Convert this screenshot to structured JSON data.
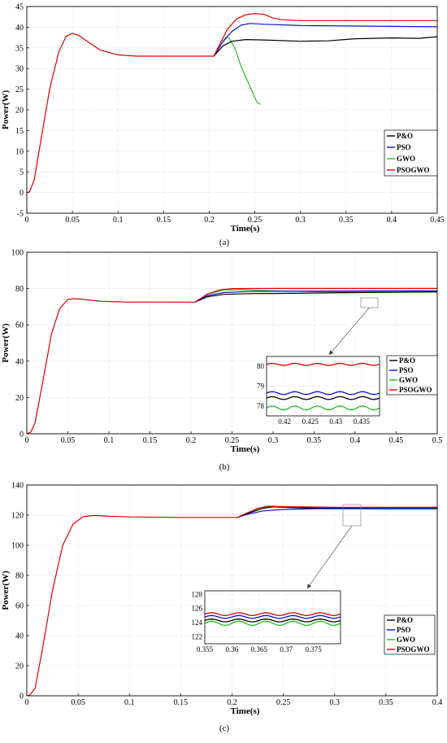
{
  "chart_data": [
    {
      "type": "line",
      "caption": "(a)",
      "xlabel": "Time(s)",
      "ylabel": "Power(W)",
      "xlim": [
        0,
        0.45
      ],
      "ylim": [
        -5,
        45
      ],
      "xticks": [
        "0",
        "0.05",
        "0.1",
        "0.15",
        "0.2",
        "0.25",
        "0.3",
        "0.35",
        "0.4",
        "0.45"
      ],
      "xtickvals": [
        0,
        0.05,
        0.1,
        0.15,
        0.2,
        0.25,
        0.3,
        0.35,
        0.4,
        0.45
      ],
      "yticks": [
        "-5",
        "0",
        "5",
        "10",
        "15",
        "20",
        "25",
        "30",
        "35",
        "40",
        "45"
      ],
      "ytickvals": [
        -5,
        0,
        5,
        10,
        15,
        20,
        25,
        30,
        35,
        40,
        45
      ],
      "grid": true,
      "legend_position": "right",
      "series": [
        {
          "name": "P&O",
          "color": "#000000",
          "points": [
            [
              0.205,
              33
            ],
            [
              0.215,
              35.5
            ],
            [
              0.225,
              36.6
            ],
            [
              0.24,
              37
            ],
            [
              0.26,
              36.9
            ],
            [
              0.3,
              36.6
            ],
            [
              0.33,
              36.7
            ],
            [
              0.36,
              37.2
            ],
            [
              0.4,
              37.4
            ],
            [
              0.43,
              37.3
            ],
            [
              0.45,
              37.7
            ]
          ]
        },
        {
          "name": "PSO",
          "color": "#1010d0",
          "points": [
            [
              0.205,
              33
            ],
            [
              0.215,
              36.5
            ],
            [
              0.225,
              39
            ],
            [
              0.235,
              40.5
            ],
            [
              0.245,
              40.9
            ],
            [
              0.26,
              40.7
            ],
            [
              0.3,
              40.4
            ],
            [
              0.35,
              40.3
            ],
            [
              0.4,
              40.2
            ],
            [
              0.45,
              40.1
            ]
          ]
        },
        {
          "name": "GWO",
          "color": "#22c022",
          "points": [
            [
              0.205,
              33
            ],
            [
              0.212,
              35.5
            ],
            [
              0.218,
              37.5
            ],
            [
              0.222,
              37.3
            ],
            [
              0.228,
              35
            ],
            [
              0.235,
              30.5
            ],
            [
              0.242,
              27
            ],
            [
              0.248,
              24
            ],
            [
              0.252,
              22
            ],
            [
              0.256,
              21.3
            ]
          ]
        },
        {
          "name": "PSOGWO",
          "color": "#e00000",
          "points": [
            [
              0,
              0
            ],
            [
              0.003,
              0.2
            ],
            [
              0.008,
              3
            ],
            [
              0.015,
              12
            ],
            [
              0.025,
              25
            ],
            [
              0.035,
              34
            ],
            [
              0.043,
              37.8
            ],
            [
              0.05,
              38.5
            ],
            [
              0.057,
              38
            ],
            [
              0.065,
              36.8
            ],
            [
              0.08,
              34.5
            ],
            [
              0.1,
              33.3
            ],
            [
              0.12,
              33
            ],
            [
              0.15,
              33
            ],
            [
              0.2,
              33
            ],
            [
              0.205,
              33
            ],
            [
              0.213,
              36.5
            ],
            [
              0.22,
              39.5
            ],
            [
              0.23,
              42
            ],
            [
              0.24,
              43
            ],
            [
              0.25,
              43.3
            ],
            [
              0.26,
              43.1
            ],
            [
              0.27,
              42.2
            ],
            [
              0.28,
              41.8
            ],
            [
              0.3,
              41.6
            ],
            [
              0.35,
              41.6
            ],
            [
              0.4,
              41.6
            ],
            [
              0.45,
              41.6
            ]
          ]
        }
      ]
    },
    {
      "type": "line",
      "caption": "(b)",
      "xlabel": "Time(s)",
      "ylabel": "Power(W)",
      "xlim": [
        0,
        0.5
      ],
      "ylim": [
        0,
        100
      ],
      "xticks": [
        "0",
        "0.05",
        "0.1",
        "0.15",
        "0.2",
        "0.25",
        "0.3",
        "0.35",
        "0.4",
        "0.45",
        "0.5"
      ],
      "xtickvals": [
        0,
        0.05,
        0.1,
        0.15,
        0.2,
        0.25,
        0.3,
        0.35,
        0.4,
        0.45,
        0.5
      ],
      "yticks": [
        "0",
        "20",
        "40",
        "60",
        "80",
        "100"
      ],
      "ytickvals": [
        0,
        20,
        40,
        60,
        80,
        100
      ],
      "grid": true,
      "legend_position": "right",
      "series": [
        {
          "name": "P&O",
          "color": "#000000",
          "points": [
            [
              0.205,
              72.5
            ],
            [
              0.22,
              75.5
            ],
            [
              0.24,
              76.8
            ],
            [
              0.27,
              77.2
            ],
            [
              0.3,
              77.3
            ],
            [
              0.4,
              77.8
            ],
            [
              0.45,
              78
            ],
            [
              0.5,
              78.2
            ]
          ]
        },
        {
          "name": "PSO",
          "color": "#1010d0",
          "points": [
            [
              0.205,
              72.5
            ],
            [
              0.22,
              76.2
            ],
            [
              0.24,
              77.8
            ],
            [
              0.27,
              78.4
            ],
            [
              0.3,
              78.5
            ],
            [
              0.4,
              78.7
            ],
            [
              0.5,
              78.8
            ]
          ]
        },
        {
          "name": "GWO",
          "color": "#22c022",
          "points": [
            [
              0.205,
              72.5
            ],
            [
              0.22,
              77
            ],
            [
              0.24,
              79.2
            ],
            [
              0.26,
              79.4
            ],
            [
              0.3,
              78.8
            ],
            [
              0.35,
              78.3
            ],
            [
              0.4,
              78.1
            ],
            [
              0.5,
              78.1
            ]
          ]
        },
        {
          "name": "PSOGWO",
          "color": "#e00000",
          "points": [
            [
              0,
              0
            ],
            [
              0.005,
              1
            ],
            [
              0.01,
              6
            ],
            [
              0.02,
              30
            ],
            [
              0.03,
              55
            ],
            [
              0.04,
              69
            ],
            [
              0.05,
              74
            ],
            [
              0.058,
              74.5
            ],
            [
              0.07,
              74
            ],
            [
              0.09,
              73
            ],
            [
              0.12,
              72.6
            ],
            [
              0.2,
              72.5
            ],
            [
              0.205,
              72.5
            ],
            [
              0.22,
              77
            ],
            [
              0.235,
              79.3
            ],
            [
              0.25,
              80
            ],
            [
              0.3,
              80.1
            ],
            [
              0.4,
              80.1
            ],
            [
              0.5,
              80.1
            ]
          ]
        }
      ],
      "inset": {
        "xlim": [
          0.4165,
          0.4385
        ],
        "ylim": [
          77.5,
          80.5
        ],
        "xticks": [
          "0.42",
          "0.425",
          "0.43",
          "0.435"
        ],
        "xtickvals": [
          0.42,
          0.425,
          0.43,
          0.435
        ],
        "yticks": [
          "78",
          "79",
          "80"
        ],
        "ytickvals": [
          78,
          79,
          80
        ],
        "series_levels": [
          {
            "name": "P&O",
            "color": "#000000",
            "level": 78.4,
            "ripple": 0.07
          },
          {
            "name": "PSO",
            "color": "#1010d0",
            "level": 78.65,
            "ripple": 0.07
          },
          {
            "name": "GWO",
            "color": "#22c022",
            "level": 77.9,
            "ripple": 0.1
          },
          {
            "name": "PSOGWO",
            "color": "#e00000",
            "level": 80.1,
            "ripple": 0.05
          }
        ]
      }
    },
    {
      "type": "line",
      "caption": "(c)",
      "xlabel": "Time(s)",
      "ylabel": "Power(W)",
      "xlim": [
        0,
        0.4
      ],
      "ylim": [
        0,
        140
      ],
      "xticks": [
        "0",
        "0.05",
        "0.1",
        "0.15",
        "0.2",
        "0.25",
        "0.3",
        "0.35",
        "0.4"
      ],
      "xtickvals": [
        0,
        0.05,
        0.1,
        0.15,
        0.2,
        0.25,
        0.3,
        0.35,
        0.4
      ],
      "yticks": [
        "0",
        "20",
        "40",
        "60",
        "80",
        "100",
        "120",
        "140"
      ],
      "ytickvals": [
        0,
        20,
        40,
        60,
        80,
        100,
        120,
        140
      ],
      "grid": true,
      "legend_position": "right",
      "series": [
        {
          "name": "P&O",
          "color": "#000000",
          "points": [
            [
              0.205,
              118.5
            ],
            [
              0.215,
              121
            ],
            [
              0.23,
              124.5
            ],
            [
              0.24,
              125.5
            ],
            [
              0.26,
              125
            ],
            [
              0.3,
              124.6
            ],
            [
              0.35,
              124.5
            ],
            [
              0.4,
              124.5
            ]
          ]
        },
        {
          "name": "PSO",
          "color": "#1010d0",
          "points": [
            [
              0.205,
              118.5
            ],
            [
              0.215,
              120.5
            ],
            [
              0.23,
              122.8
            ],
            [
              0.25,
              123.8
            ],
            [
              0.28,
              124.2
            ],
            [
              0.35,
              124.5
            ],
            [
              0.4,
              124.6
            ]
          ]
        },
        {
          "name": "GWO",
          "color": "#22c022",
          "points": [
            [
              0.205,
              118.5
            ],
            [
              0.215,
              121.5
            ],
            [
              0.228,
              125
            ],
            [
              0.24,
              125.6
            ],
            [
              0.27,
              124.6
            ],
            [
              0.3,
              124.2
            ],
            [
              0.35,
              124
            ],
            [
              0.4,
              124
            ]
          ]
        },
        {
          "name": "PSOGWO",
          "color": "#e00000",
          "points": [
            [
              0,
              0
            ],
            [
              0.003,
              0.5
            ],
            [
              0.008,
              5
            ],
            [
              0.015,
              30
            ],
            [
              0.025,
              70
            ],
            [
              0.035,
              100
            ],
            [
              0.045,
              114
            ],
            [
              0.055,
              119
            ],
            [
              0.065,
              119.8
            ],
            [
              0.08,
              119.3
            ],
            [
              0.1,
              118.8
            ],
            [
              0.15,
              118.5
            ],
            [
              0.2,
              118.5
            ],
            [
              0.205,
              118.5
            ],
            [
              0.215,
              121.5
            ],
            [
              0.225,
              124.5
            ],
            [
              0.235,
              126
            ],
            [
              0.25,
              125.6
            ],
            [
              0.3,
              125.2
            ],
            [
              0.35,
              125.2
            ],
            [
              0.4,
              125.2
            ]
          ]
        }
      ],
      "inset": {
        "xlim": [
          0.355,
          0.38
        ],
        "ylim": [
          121,
          128.5
        ],
        "xticks": [
          "0.355",
          "0.36",
          "0.365",
          "0.37",
          "0.375"
        ],
        "xtickvals": [
          0.355,
          0.36,
          0.365,
          0.37,
          0.375
        ],
        "yticks": [
          "122",
          "124",
          "126",
          "128"
        ],
        "ytickvals": [
          122,
          124,
          126,
          128
        ],
        "series_levels": [
          {
            "name": "P&O",
            "color": "#000000",
            "level": 124.3,
            "ripple": 0.2
          },
          {
            "name": "PSO",
            "color": "#1010d0",
            "level": 124.8,
            "ripple": 0.2
          },
          {
            "name": "GWO",
            "color": "#22c022",
            "level": 123.9,
            "ripple": 0.3
          },
          {
            "name": "PSOGWO",
            "color": "#e00000",
            "level": 125.2,
            "ripple": 0.2
          }
        ]
      }
    }
  ]
}
